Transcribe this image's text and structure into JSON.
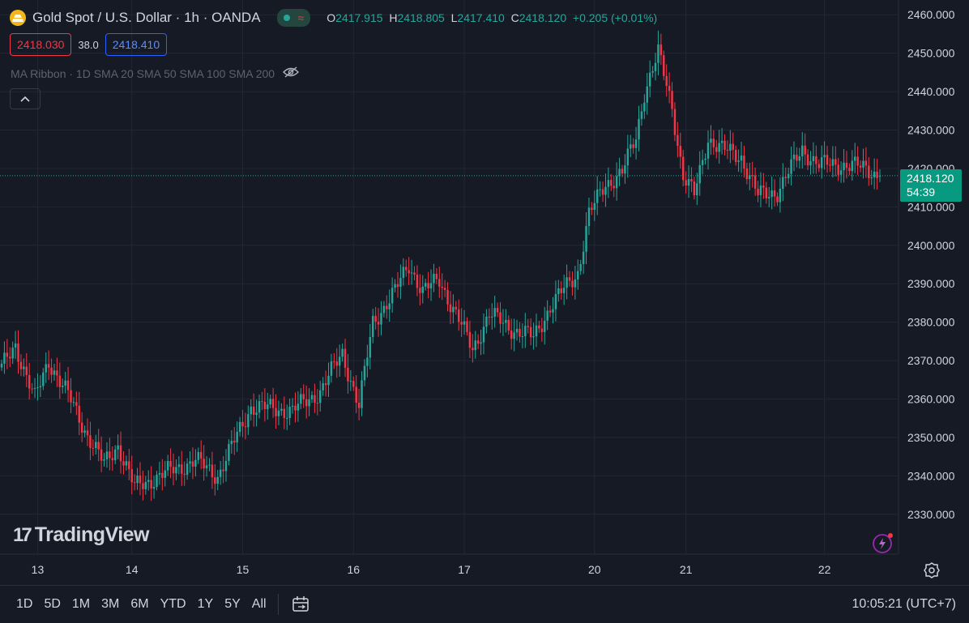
{
  "header": {
    "title": "Gold Spot / U.S. Dollar · 1h · OANDA",
    "ohlc": {
      "o_label": "O",
      "o": "2417.915",
      "h_label": "H",
      "h": "2418.805",
      "l_label": "L",
      "l": "2417.410",
      "c_label": "C",
      "c": "2418.120",
      "change": "+0.205 (+0.01%)"
    },
    "sell_price": "2418.030",
    "spread": "38.0",
    "buy_price": "2418.410",
    "indicator": "MA Ribbon · 1D SMA 20 SMA 50 SMA 100 SMA 200"
  },
  "last_price": {
    "value": "2418.120",
    "countdown": "54:39"
  },
  "logo_text": "TradingView",
  "logo_mark": "17",
  "bottom_bar": {
    "ranges": [
      "1D",
      "5D",
      "1M",
      "3M",
      "6M",
      "YTD",
      "1Y",
      "5Y",
      "All"
    ],
    "clock": "10:05:21 (UTC+7)"
  },
  "colors": {
    "up": "#26a69a",
    "down": "#f23645",
    "background": "#161a25",
    "grid": "#232733",
    "text": "#d1d4dc",
    "gold": "#f2b619"
  },
  "icons": [
    "gold-logo-icon",
    "hide-eye-icon",
    "chevron-up-icon",
    "calendar-range-icon",
    "gear-icon",
    "lightning-icon"
  ],
  "chart_data": {
    "type": "candlestick",
    "ylim": [
      2323,
      2463
    ],
    "y_ticks": [
      "2460.000",
      "2450.000",
      "2440.000",
      "2430.000",
      "2420.000",
      "2410.000",
      "2400.000",
      "2390.000",
      "2380.000",
      "2370.000",
      "2360.000",
      "2350.000",
      "2340.000",
      "2330.000"
    ],
    "x_labels": [
      {
        "label": "13",
        "at": 13
      },
      {
        "label": "14",
        "at": 47
      },
      {
        "label": "15",
        "at": 87
      },
      {
        "label": "16",
        "at": 127
      },
      {
        "label": "17",
        "at": 167
      },
      {
        "label": "20",
        "at": 214
      },
      {
        "label": "21",
        "at": 247
      },
      {
        "label": "22",
        "at": 297
      }
    ],
    "bar_count": 318,
    "last_price": 2418.12,
    "close_anchors": [
      [
        0,
        2368
      ],
      [
        5,
        2374
      ],
      [
        12,
        2360
      ],
      [
        17,
        2370
      ],
      [
        24,
        2361
      ],
      [
        30,
        2352
      ],
      [
        37,
        2343
      ],
      [
        42,
        2348
      ],
      [
        48,
        2337
      ],
      [
        60,
        2341
      ],
      [
        70,
        2344
      ],
      [
        78,
        2340
      ],
      [
        90,
        2358
      ],
      [
        105,
        2357
      ],
      [
        115,
        2362
      ],
      [
        123,
        2372
      ],
      [
        129,
        2358
      ],
      [
        134,
        2380
      ],
      [
        142,
        2388
      ],
      [
        147,
        2395
      ],
      [
        152,
        2388
      ],
      [
        158,
        2391
      ],
      [
        170,
        2373
      ],
      [
        176,
        2382
      ],
      [
        185,
        2378
      ],
      [
        192,
        2376
      ],
      [
        198,
        2384
      ],
      [
        208,
        2393
      ],
      [
        212,
        2408
      ],
      [
        218,
        2416
      ],
      [
        224,
        2419
      ],
      [
        229,
        2428
      ],
      [
        232,
        2440
      ],
      [
        237,
        2450
      ],
      [
        242,
        2436
      ],
      [
        246,
        2418
      ],
      [
        250,
        2413
      ],
      [
        255,
        2428
      ],
      [
        260,
        2425
      ],
      [
        267,
        2423
      ],
      [
        273,
        2413
      ],
      [
        280,
        2414
      ],
      [
        289,
        2425
      ],
      [
        295,
        2421
      ],
      [
        305,
        2421
      ],
      [
        312,
        2420
      ],
      [
        317,
        2418.12
      ]
    ]
  }
}
